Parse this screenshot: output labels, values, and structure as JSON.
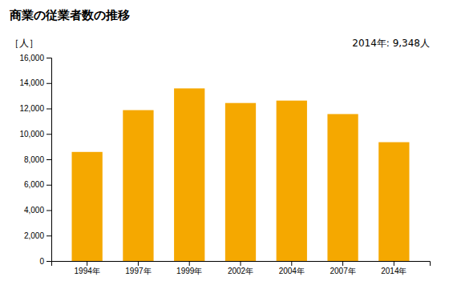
{
  "chart_data": {
    "type": "bar",
    "title": "商業の従業者数の推移",
    "ylabel": "［人］",
    "annotation": "2014年: 9,348人",
    "categories": [
      "1994年",
      "1997年",
      "1999年",
      "2002年",
      "2004年",
      "2007年",
      "2014年"
    ],
    "values": [
      8580,
      11870,
      13580,
      12430,
      12620,
      11560,
      9348
    ],
    "color": "#F5A800",
    "ylim": [
      0,
      16000
    ],
    "yticks": [
      0,
      {
        "value": 2000,
        "label": "2,000"
      },
      {
        "value": 4000,
        "label": "4,000"
      },
      {
        "value": 6000,
        "label": "6,000"
      },
      {
        "value": 8000,
        "label": "8,000"
      },
      {
        "value": 10000,
        "label": "10,000"
      },
      {
        "value": 12000,
        "label": "12,000"
      },
      {
        "value": 14000,
        "label": "14,000"
      },
      {
        "value": 16000,
        "label": "16,000"
      }
    ],
    "grid": false
  }
}
